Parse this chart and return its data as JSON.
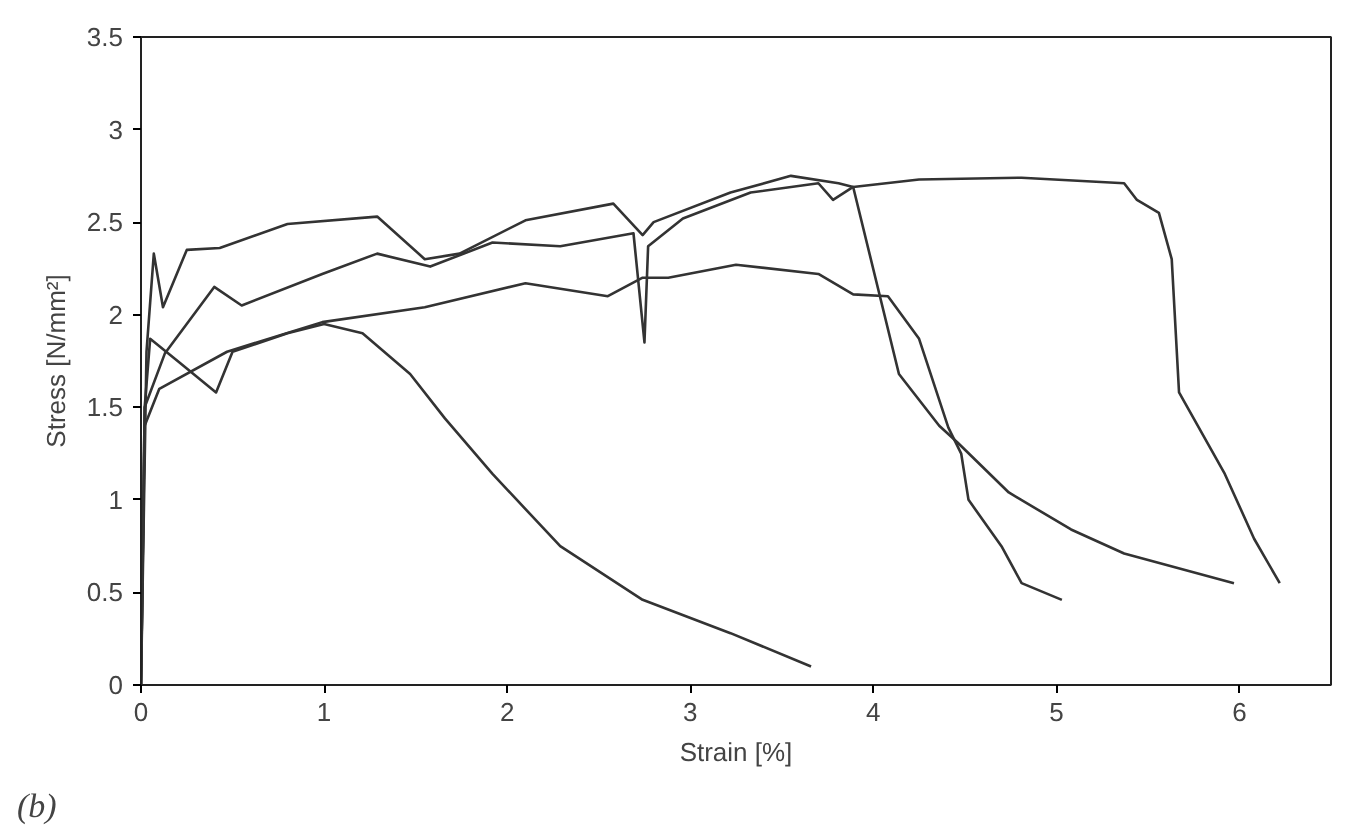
{
  "chart_data": {
    "type": "line",
    "xlabel": "Strain [%]",
    "ylabel": "Stress [N/mm²]",
    "xlim": [
      0,
      6.5
    ],
    "ylim": [
      0,
      3.5
    ],
    "xticks": [
      0,
      1,
      2,
      3,
      4,
      5,
      6
    ],
    "yticks": [
      0,
      0.5,
      1,
      1.5,
      2,
      2.5,
      3,
      3.5
    ],
    "grid": false,
    "marker": "none",
    "line_style": "solid",
    "annotations": [
      "(b)"
    ],
    "series": [
      {
        "color": "#333333",
        "x": [
          0,
          0.02,
          0.05,
          0.2,
          0.41,
          0.5,
          0.8,
          1.0,
          1.21,
          1.47,
          1.66,
          1.92,
          2.29,
          2.74,
          3.22,
          3.66
        ],
        "values": [
          0,
          1.5,
          1.87,
          1.75,
          1.58,
          1.8,
          1.9,
          1.95,
          1.9,
          1.68,
          1.44,
          1.14,
          0.75,
          0.46,
          0.28,
          0.1
        ]
      },
      {
        "color": "#333333",
        "x": [
          0,
          0.02,
          0.1,
          0.47,
          0.99,
          1.55,
          2.1,
          2.55,
          2.74,
          2.88,
          3.25,
          3.7,
          3.89,
          4.08,
          4.25,
          4.41,
          4.48,
          4.52,
          4.7,
          4.81,
          5.03
        ],
        "values": [
          0,
          1.4,
          1.6,
          1.8,
          1.96,
          2.04,
          2.17,
          2.1,
          2.2,
          2.2,
          2.27,
          2.22,
          2.11,
          2.1,
          1.87,
          1.39,
          1.25,
          1.0,
          0.75,
          0.55,
          0.46
        ]
      },
      {
        "color": "#333333",
        "x": [
          0,
          0.03,
          0.07,
          0.12,
          0.25,
          0.43,
          0.8,
          1.29,
          1.55,
          1.74,
          2.1,
          2.58,
          2.74,
          2.8,
          3.22,
          3.55,
          3.81,
          3.89,
          4.14,
          4.36,
          4.46,
          4.74,
          5.08,
          5.37,
          5.97
        ],
        "values": [
          0,
          1.8,
          2.33,
          2.04,
          2.35,
          2.36,
          2.49,
          2.53,
          2.3,
          2.33,
          2.51,
          2.6,
          2.43,
          2.5,
          2.66,
          2.75,
          2.71,
          2.69,
          1.68,
          1.4,
          1.31,
          1.04,
          0.84,
          0.71,
          0.55
        ]
      },
      {
        "color": "#333333",
        "x": [
          0,
          0.02,
          0.13,
          0.4,
          0.55,
          0.99,
          1.29,
          1.58,
          1.92,
          2.29,
          2.69,
          2.75,
          2.77,
          2.96,
          3.33,
          3.7,
          3.78,
          3.89,
          4.25,
          4.81,
          5.37,
          5.44,
          5.56,
          5.63,
          5.67,
          5.92,
          6.08,
          6.22
        ],
        "values": [
          0,
          1.5,
          1.79,
          2.15,
          2.05,
          2.22,
          2.33,
          2.26,
          2.39,
          2.37,
          2.44,
          1.85,
          2.37,
          2.52,
          2.66,
          2.71,
          2.62,
          2.69,
          2.73,
          2.74,
          2.71,
          2.62,
          2.55,
          2.3,
          1.58,
          1.14,
          0.79,
          0.55
        ]
      }
    ]
  }
}
